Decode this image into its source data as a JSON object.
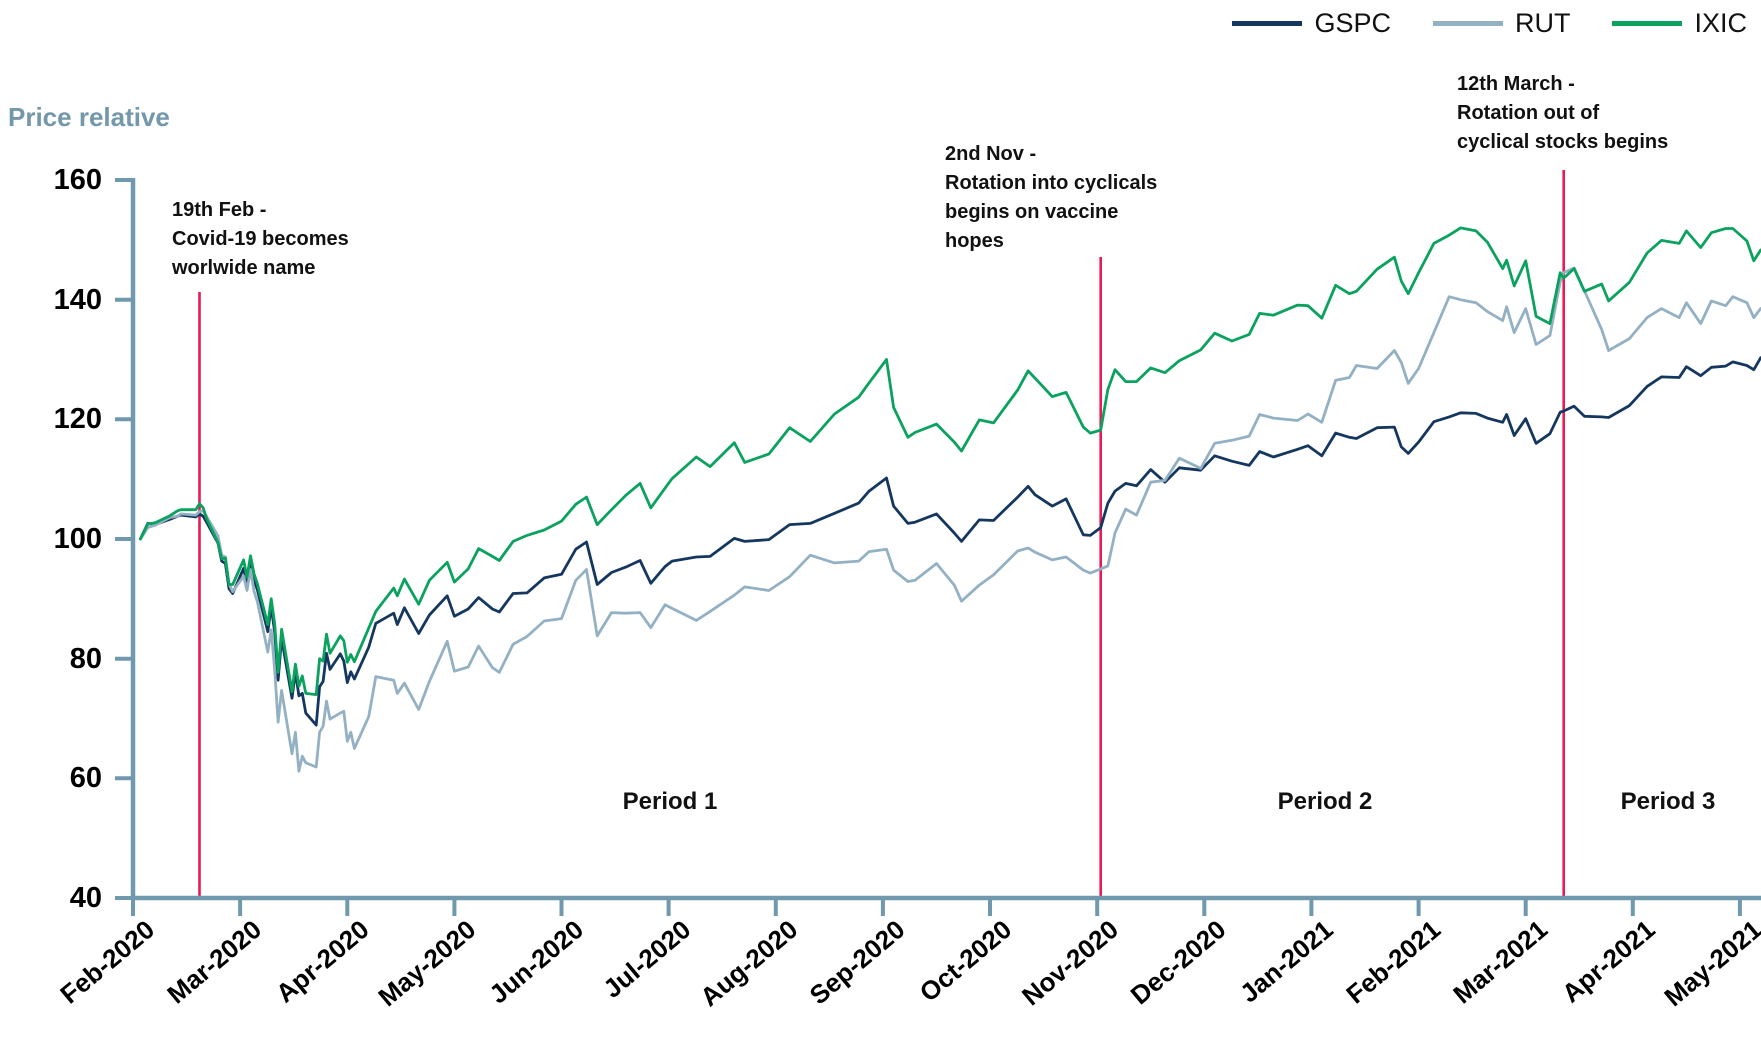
{
  "chart_data": {
    "type": "line",
    "title": "",
    "ylabel": "Price relative",
    "xlabel": "",
    "ylim": [
      40,
      160
    ],
    "yticks": [
      40,
      60,
      80,
      100,
      120,
      140,
      160
    ],
    "grid": false,
    "legend_position": "top-right",
    "axis_color": "#7099ae",
    "event_line_color": "#e91a54",
    "x_axis": {
      "ticklabels": [
        "Feb-2020",
        "Mar-2020",
        "Apr-2020",
        "May-2020",
        "Jun-2020",
        "Jul-2020",
        "Aug-2020",
        "Sep-2020",
        "Oct-2020",
        "Nov-2020",
        "Dec-2020",
        "Jan-2021",
        "Feb-2021",
        "Mar-2021",
        "Apr-2021",
        "May-2021"
      ]
    },
    "dates": [
      "2020-02-03",
      "2020-02-05",
      "2020-02-07",
      "2020-02-11",
      "2020-02-13",
      "2020-02-14",
      "2020-02-18",
      "2020-02-19",
      "2020-02-20",
      "2020-02-21",
      "2020-02-24",
      "2020-02-25",
      "2020-02-26",
      "2020-02-27",
      "2020-02-28",
      "2020-03-02",
      "2020-03-03",
      "2020-03-04",
      "2020-03-05",
      "2020-03-06",
      "2020-03-09",
      "2020-03-10",
      "2020-03-11",
      "2020-03-12",
      "2020-03-13",
      "2020-03-16",
      "2020-03-17",
      "2020-03-18",
      "2020-03-19",
      "2020-03-20",
      "2020-03-23",
      "2020-03-24",
      "2020-03-25",
      "2020-03-26",
      "2020-03-27",
      "2020-03-30",
      "2020-03-31",
      "2020-04-01",
      "2020-04-02",
      "2020-04-03",
      "2020-04-07",
      "2020-04-09",
      "2020-04-14",
      "2020-04-15",
      "2020-04-17",
      "2020-04-21",
      "2020-04-24",
      "2020-04-29",
      "2020-05-01",
      "2020-05-05",
      "2020-05-08",
      "2020-05-12",
      "2020-05-14",
      "2020-05-18",
      "2020-05-22",
      "2020-05-27",
      "2020-06-01",
      "2020-06-05",
      "2020-06-08",
      "2020-06-11",
      "2020-06-15",
      "2020-06-19",
      "2020-06-23",
      "2020-06-26",
      "2020-06-30",
      "2020-07-02",
      "2020-07-09",
      "2020-07-13",
      "2020-07-20",
      "2020-07-23",
      "2020-07-30",
      "2020-08-05",
      "2020-08-11",
      "2020-08-18",
      "2020-08-25",
      "2020-08-28",
      "2020-09-02",
      "2020-09-04",
      "2020-09-08",
      "2020-09-10",
      "2020-09-16",
      "2020-09-21",
      "2020-09-23",
      "2020-09-28",
      "2020-10-02",
      "2020-10-09",
      "2020-10-12",
      "2020-10-14",
      "2020-10-19",
      "2020-10-23",
      "2020-10-28",
      "2020-10-30",
      "2020-11-02",
      "2020-11-04",
      "2020-11-06",
      "2020-11-09",
      "2020-11-12",
      "2020-11-16",
      "2020-11-20",
      "2020-11-24",
      "2020-11-30",
      "2020-12-04",
      "2020-12-09",
      "2020-12-14",
      "2020-12-17",
      "2020-12-21",
      "2020-12-28",
      "2020-12-31",
      "2021-01-04",
      "2021-01-08",
      "2021-01-12",
      "2021-01-14",
      "2021-01-20",
      "2021-01-25",
      "2021-01-27",
      "2021-01-29",
      "2021-02-01",
      "2021-02-05",
      "2021-02-09",
      "2021-02-12",
      "2021-02-16",
      "2021-02-19",
      "2021-02-23",
      "2021-02-24",
      "2021-02-26",
      "2021-03-01",
      "2021-03-04",
      "2021-03-08",
      "2021-03-11",
      "2021-03-12",
      "2021-03-15",
      "2021-03-18",
      "2021-03-23",
      "2021-03-25",
      "2021-03-31",
      "2021-04-05",
      "2021-04-09",
      "2021-04-14",
      "2021-04-16",
      "2021-04-20",
      "2021-04-23",
      "2021-04-27",
      "2021-04-29",
      "2021-05-03",
      "2021-05-05",
      "2021-05-07"
    ],
    "series": [
      {
        "name": "GSPC",
        "color": "#15375f",
        "values": [
          100.0,
          102.6,
          102.4,
          103.3,
          103.8,
          104.0,
          103.7,
          104.2,
          103.8,
          102.7,
          99.3,
          96.3,
          95.9,
          91.7,
          90.9,
          95.1,
          92.4,
          96.3,
          93.1,
          91.5,
          84.5,
          88.7,
          84.4,
          76.4,
          83.4,
          73.4,
          77.8,
          73.8,
          74.2,
          70.9,
          68.9,
          75.3,
          76.2,
          80.9,
          78.2,
          80.8,
          79.6,
          76.0,
          77.8,
          76.6,
          81.9,
          85.9,
          87.6,
          85.7,
          88.5,
          84.2,
          87.3,
          90.5,
          87.1,
          88.3,
          90.2,
          88.3,
          87.8,
          90.9,
          91.0,
          93.5,
          94.1,
          98.3,
          99.5,
          92.4,
          94.4,
          95.3,
          96.4,
          92.6,
          95.4,
          96.3,
          97.0,
          97.1,
          100.1,
          99.6,
          99.9,
          102.4,
          102.6,
          104.3,
          106.0,
          108.0,
          110.2,
          105.5,
          102.6,
          102.8,
          104.2,
          101.0,
          99.6,
          103.2,
          103.1,
          107.0,
          108.8,
          107.4,
          105.5,
          106.7,
          100.7,
          100.6,
          101.9,
          106.0,
          108.0,
          109.3,
          108.9,
          111.6,
          109.5,
          111.9,
          111.5,
          113.9,
          113.0,
          112.3,
          114.6,
          113.7,
          115.0,
          115.6,
          113.9,
          117.7,
          117.0,
          116.8,
          118.6,
          118.7,
          115.4,
          114.3,
          116.2,
          119.6,
          120.4,
          121.1,
          121.0,
          120.2,
          119.5,
          120.8,
          117.3,
          120.1,
          116.0,
          117.6,
          121.2,
          121.4,
          122.2,
          120.5,
          120.4,
          120.3,
          122.3,
          125.5,
          127.1,
          127.0,
          128.8,
          127.3,
          128.7,
          128.9,
          129.6,
          129.0,
          128.3,
          130.3
        ]
      },
      {
        "name": "RUT",
        "color": "#93b1c3",
        "values": [
          100.0,
          101.9,
          102.3,
          103.6,
          103.8,
          104.2,
          104.0,
          104.6,
          104.7,
          103.7,
          100.5,
          97.3,
          97.0,
          92.5,
          91.2,
          93.8,
          91.4,
          94.9,
          91.3,
          89.5,
          81.1,
          84.8,
          78.1,
          69.4,
          74.7,
          64.1,
          67.7,
          61.2,
          63.7,
          62.6,
          61.9,
          67.7,
          68.7,
          72.9,
          69.9,
          70.9,
          71.2,
          66.2,
          67.7,
          65.0,
          70.3,
          77.0,
          76.4,
          74.2,
          75.9,
          71.5,
          76.2,
          82.9,
          77.9,
          78.6,
          82.1,
          78.5,
          77.7,
          82.4,
          83.7,
          86.3,
          86.7,
          93.1,
          94.9,
          83.8,
          87.7,
          87.6,
          87.7,
          85.2,
          89.0,
          88.4,
          86.4,
          87.9,
          90.6,
          92.0,
          91.4,
          93.7,
          97.3,
          96.0,
          96.3,
          97.9,
          98.3,
          94.8,
          92.9,
          93.1,
          95.9,
          92.3,
          89.6,
          92.3,
          94.0,
          98.0,
          98.5,
          97.8,
          96.5,
          97.0,
          94.8,
          94.3,
          95.0,
          95.5,
          101.0,
          105.0,
          104.0,
          109.5,
          109.8,
          113.5,
          111.8,
          116.0,
          116.5,
          117.2,
          120.8,
          120.2,
          119.8,
          120.9,
          119.5,
          126.5,
          127.0,
          129.0,
          128.5,
          131.5,
          129.5,
          126.0,
          128.5,
          134.5,
          140.5,
          140.0,
          139.5,
          138.0,
          136.5,
          138.8,
          134.5,
          138.5,
          132.5,
          134.0,
          143.0,
          144.5,
          145.3,
          141.5,
          135.0,
          131.5,
          133.5,
          137.0,
          138.5,
          137.0,
          139.5,
          136.0,
          139.8,
          139.0,
          140.5,
          139.5,
          137.0,
          138.5
        ]
      },
      {
        "name": "IXIC",
        "color": "#0aa25e",
        "values": [
          100.0,
          102.5,
          102.7,
          103.9,
          104.7,
          104.9,
          104.9,
          105.9,
          105.2,
          103.3,
          99.4,
          96.7,
          96.8,
          92.4,
          92.4,
          96.5,
          93.6,
          97.2,
          94.2,
          92.5,
          85.7,
          90.0,
          85.8,
          77.7,
          84.9,
          74.5,
          79.1,
          75.4,
          77.1,
          74.2,
          74.0,
          80.0,
          79.6,
          84.1,
          80.9,
          83.8,
          83.0,
          79.4,
          80.7,
          79.5,
          85.1,
          87.9,
          91.8,
          90.5,
          93.3,
          89.1,
          93.1,
          96.1,
          92.8,
          95.0,
          98.4,
          97.1,
          96.4,
          99.6,
          100.6,
          101.5,
          103.0,
          105.8,
          107.0,
          102.4,
          104.9,
          107.3,
          109.3,
          105.2,
          108.5,
          110.1,
          113.7,
          112.1,
          116.1,
          112.8,
          114.2,
          118.6,
          116.3,
          120.9,
          123.7,
          126.1,
          130.0,
          122.0,
          117.0,
          117.8,
          119.2,
          116.2,
          114.7,
          119.9,
          119.4,
          124.9,
          128.1,
          126.9,
          123.8,
          124.5,
          118.7,
          117.7,
          118.2,
          125.0,
          128.3,
          126.3,
          126.3,
          128.6,
          127.8,
          129.8,
          131.6,
          134.4,
          133.1,
          134.2,
          137.7,
          137.4,
          139.1,
          139.0,
          136.9,
          142.4,
          141.0,
          141.4,
          145.1,
          147.1,
          143.1,
          141.0,
          144.5,
          149.4,
          150.8,
          152.0,
          151.5,
          149.6,
          145.2,
          146.6,
          142.3,
          146.5,
          137.2,
          136.0,
          144.5,
          143.6,
          145.2,
          141.4,
          142.6,
          139.8,
          142.9,
          147.8,
          149.9,
          149.4,
          151.5,
          148.7,
          151.2,
          151.9,
          151.9,
          149.8,
          146.5,
          148.3
        ]
      }
    ],
    "event_lines": [
      {
        "date": "2020-02-19",
        "lines": [
          "19th Feb -",
          "Covid-19 becomes",
          "worlwide name"
        ]
      },
      {
        "date": "2020-11-02",
        "lines": [
          "2nd Nov -",
          "Rotation into cyclicals",
          "begins on vaccine",
          "hopes"
        ]
      },
      {
        "date": "2021-03-12",
        "lines": [
          "12th March -",
          "Rotation out of",
          "cyclical stocks begins"
        ]
      }
    ],
    "period_labels": [
      "Period 1",
      "Period 2",
      "Period 3"
    ]
  }
}
